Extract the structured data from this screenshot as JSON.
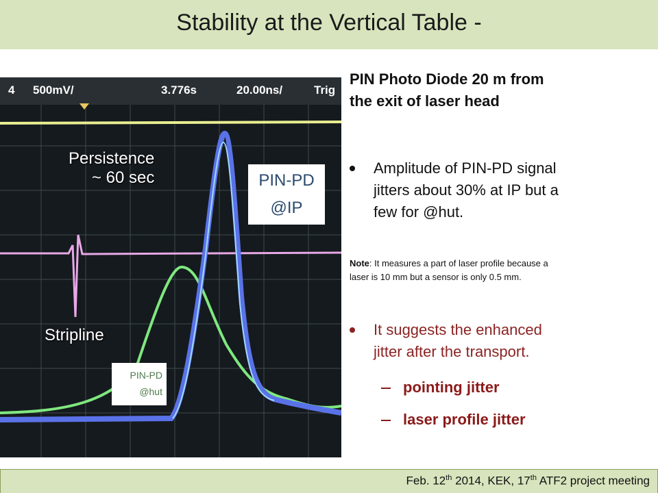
{
  "header": {
    "title": "Stability at the Vertical Table -"
  },
  "scope": {
    "channel": "4",
    "scale": "500mV/",
    "time": "3.776s",
    "timebase": "20.00ns/",
    "trigger": "Trig"
  },
  "labels": {
    "persistence": [
      "Persistence",
      "~ 60 sec"
    ],
    "pin_pd_ip": [
      "PIN-PD",
      "@IP"
    ],
    "stripline": "Stripline",
    "pin_pd_hut": [
      "PIN-PD",
      "@hut"
    ]
  },
  "content": {
    "heading": [
      "PIN Photo Diode 20 m from",
      "the exit of laser head"
    ],
    "bullet1": [
      "Amplitude of PIN-PD signal",
      "jitters about 30% at IP but a",
      "few for @hut."
    ],
    "note": {
      "label": "Note",
      "lines": [
        ": It measures a part of laser profile because a",
        "laser is 10 mm but a sensor is only 0.5 mm."
      ]
    },
    "bullet2": [
      "It suggests the enhanced",
      "jitter after the transport."
    ],
    "sub_bullets": [
      "pointing jitter",
      "laser profile jitter"
    ]
  },
  "footer": {
    "parts": [
      "Feb. 12",
      "th",
      " 2014, KEK, 17",
      "th",
      " ATF2 project meeting"
    ]
  }
}
